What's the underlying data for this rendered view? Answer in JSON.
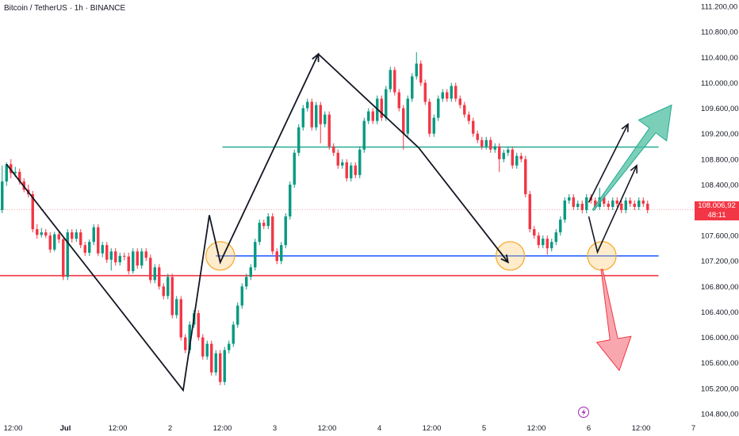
{
  "header": {
    "title": "Bitcoin / TetherUS · 1h · BINANCE"
  },
  "price_label": {
    "price": "108.006,92",
    "countdown": "48:11",
    "color": "#f23645"
  },
  "icons": {
    "bottom_marker": "lightning-icon"
  },
  "colors": {
    "up": "#089981",
    "down": "#f23645",
    "resistance": "#22ab94",
    "support": "#f23645",
    "retest": "#2962ff",
    "zone": "#fbc96c",
    "bull_arrow": "#22ab94",
    "bear_arrow": "#f23645"
  },
  "chart_data": {
    "type": "candlestick",
    "title": "Bitcoin / TetherUS · 1h · BINANCE",
    "y_tick_labels": [
      "111.200,00",
      "110.800,00",
      "110.400,00",
      "110.000,00",
      "109.600,00",
      "109.200,00",
      "108.800,00",
      "108.400,00",
      "108.000,00",
      "107.600,00",
      "107.200,00",
      "106.800,00",
      "106.400,00",
      "106.000,00",
      "105.600,00",
      "105.200,00",
      "104.800,00"
    ],
    "y_ticks": [
      111200,
      110800,
      110400,
      110000,
      109600,
      109200,
      108800,
      108400,
      108000,
      107600,
      107200,
      106800,
      106400,
      106000,
      105600,
      105200,
      104800
    ],
    "ylim": [
      104700,
      111300
    ],
    "x_tick_labels": [
      "12:00",
      "Jul",
      "12:00",
      "2",
      "12:00",
      "3",
      "12:00",
      "4",
      "12:00",
      "5",
      "12:00",
      "6",
      "12:00",
      "7"
    ],
    "x_ticks_hours": [
      -12,
      0,
      12,
      24,
      36,
      48,
      60,
      72,
      84,
      96,
      108,
      120,
      132,
      144
    ],
    "xlim_hours": [
      -15,
      145
    ],
    "current_price": 108006.92,
    "horizontal_levels": [
      {
        "name": "resistance",
        "price": 108990,
        "x_start": 36,
        "x_end": 136
      },
      {
        "name": "support-retest",
        "price": 107280,
        "x_start": 34.5,
        "x_end": 136
      },
      {
        "name": "breakdown-level",
        "price": 106970,
        "x_start": -15,
        "x_end": 136
      }
    ],
    "zones": [
      {
        "x": 35.5,
        "price": 107280
      },
      {
        "x": 102,
        "price": 107280
      },
      {
        "x": 123,
        "price": 107280
      }
    ],
    "zigzag": [
      [
        -13.5,
        108720
      ],
      [
        27,
        105170
      ],
      [
        33,
        107920
      ],
      [
        35.5,
        107180
      ],
      [
        58,
        110450
      ],
      [
        81,
        108980
      ],
      [
        101.5,
        107180
      ]
    ],
    "projection_paths": [
      [
        [
          120,
          107900
        ],
        [
          122,
          107340
        ],
        [
          131,
          108700
        ]
      ],
      [
        [
          120,
          108120
        ],
        [
          129,
          109350
        ]
      ]
    ],
    "bull_arrow": {
      "from": [
        121,
        108000
      ],
      "to": [
        139,
        109650
      ]
    },
    "bear_arrow": {
      "from": [
        123,
        107070
      ],
      "to": [
        127,
        105480
      ]
    },
    "candles": [
      [
        108000,
        108450,
        107950,
        108700
      ],
      [
        108450,
        108720,
        108380,
        108750
      ],
      [
        108720,
        108580,
        108500,
        108800
      ],
      [
        108580,
        108600,
        108520,
        108680
      ],
      [
        108600,
        108450,
        108400,
        108650
      ],
      [
        108450,
        108320,
        108280,
        108500
      ],
      [
        108320,
        108250,
        108200,
        108400
      ],
      [
        108250,
        107700,
        107650,
        108300
      ],
      [
        107700,
        107610,
        107550,
        107780
      ],
      [
        107610,
        107650,
        107570,
        107720
      ],
      [
        107650,
        107600,
        107560,
        107700
      ],
      [
        107600,
        107380,
        107330,
        107650
      ],
      [
        107380,
        107620,
        107350,
        107660
      ],
      [
        107620,
        107540,
        107480,
        107680
      ],
      [
        107540,
        106950,
        106900,
        107560
      ],
      [
        106950,
        107650,
        106900,
        107700
      ],
      [
        107650,
        107550,
        107490,
        107700
      ],
      [
        107550,
        107650,
        107500,
        107700
      ],
      [
        107650,
        107450,
        107400,
        107700
      ],
      [
        107450,
        107330,
        107280,
        107500
      ],
      [
        107330,
        107500,
        107280,
        107540
      ],
      [
        107500,
        107730,
        107450,
        107780
      ],
      [
        107730,
        107320,
        107280,
        107780
      ],
      [
        107320,
        107450,
        107260,
        107500
      ],
      [
        107450,
        107220,
        107170,
        107500
      ],
      [
        107220,
        107350,
        107050,
        107400
      ],
      [
        107350,
        107180,
        107130,
        107400
      ],
      [
        107180,
        107280,
        107130,
        107330
      ],
      [
        107280,
        107270,
        107210,
        107330
      ],
      [
        107270,
        107040,
        106990,
        107330
      ],
      [
        107040,
        107350,
        107000,
        107400
      ],
      [
        107350,
        107130,
        107080,
        107400
      ],
      [
        107130,
        107350,
        107080,
        107400
      ],
      [
        107350,
        107250,
        107200,
        107400
      ],
      [
        107250,
        106900,
        106850,
        107300
      ],
      [
        106900,
        107100,
        106850,
        107150
      ],
      [
        107100,
        106800,
        106750,
        107150
      ],
      [
        106800,
        106650,
        106600,
        106850
      ],
      [
        106650,
        106950,
        106600,
        107000
      ],
      [
        106950,
        106350,
        106300,
        107000
      ],
      [
        106350,
        106600,
        106300,
        106650
      ],
      [
        106600,
        106000,
        105950,
        106650
      ],
      [
        106000,
        105800,
        105750,
        106050
      ],
      [
        105800,
        106200,
        105750,
        106250
      ],
      [
        106200,
        106380,
        106150,
        106430
      ],
      [
        106380,
        106000,
        105950,
        106430
      ],
      [
        106000,
        105700,
        105650,
        106050
      ],
      [
        105700,
        105900,
        105650,
        105950
      ],
      [
        105900,
        105450,
        105400,
        105950
      ],
      [
        105450,
        105750,
        105400,
        105800
      ],
      [
        105750,
        105300,
        105250,
        105800
      ],
      [
        105300,
        105800,
        105250,
        105850
      ],
      [
        105800,
        105900,
        105750,
        105950
      ],
      [
        105900,
        106200,
        105850,
        106250
      ],
      [
        106200,
        106500,
        106150,
        106550
      ],
      [
        106500,
        106800,
        106450,
        106850
      ],
      [
        106800,
        106950,
        106750,
        107000
      ],
      [
        106950,
        107100,
        106900,
        107150
      ],
      [
        107100,
        107500,
        107050,
        107550
      ],
      [
        107500,
        107800,
        107450,
        107850
      ],
      [
        107800,
        107750,
        107700,
        107850
      ],
      [
        107750,
        107900,
        107700,
        107950
      ],
      [
        107900,
        107350,
        107300,
        107950
      ],
      [
        107350,
        107200,
        107150,
        107400
      ],
      [
        107200,
        107450,
        107150,
        107500
      ],
      [
        107450,
        107900,
        107400,
        107950
      ],
      [
        107900,
        108400,
        107850,
        108450
      ],
      [
        108400,
        108900,
        108350,
        108950
      ],
      [
        108900,
        109300,
        108850,
        109350
      ],
      [
        109300,
        109600,
        109250,
        109650
      ],
      [
        109600,
        109700,
        109550,
        109750
      ],
      [
        109700,
        109300,
        109250,
        109750
      ],
      [
        109300,
        109650,
        109250,
        109700
      ],
      [
        109650,
        109350,
        109050,
        109700
      ],
      [
        109350,
        109500,
        109300,
        109550
      ],
      [
        109500,
        109000,
        108950,
        109550
      ],
      [
        109000,
        108900,
        108850,
        109050
      ],
      [
        108900,
        108700,
        108650,
        108950
      ],
      [
        108700,
        108750,
        108650,
        108800
      ],
      [
        108750,
        108500,
        108450,
        108800
      ],
      [
        108500,
        108700,
        108450,
        108750
      ],
      [
        108700,
        108550,
        108500,
        108750
      ],
      [
        108550,
        108950,
        108500,
        109000
      ],
      [
        108950,
        109400,
        108900,
        109450
      ],
      [
        109400,
        109550,
        109350,
        109600
      ],
      [
        109550,
        109400,
        109350,
        109600
      ],
      [
        109400,
        109750,
        109350,
        109800
      ],
      [
        109750,
        109450,
        109400,
        109800
      ],
      [
        109450,
        109900,
        109400,
        109950
      ],
      [
        109900,
        110200,
        109850,
        110250
      ],
      [
        110200,
        109850,
        109800,
        110250
      ],
      [
        109850,
        109600,
        109550,
        109900
      ],
      [
        109600,
        109200,
        108950,
        109650
      ],
      [
        109200,
        109750,
        109150,
        109800
      ],
      [
        109750,
        110100,
        109700,
        110150
      ],
      [
        110100,
        110300,
        110050,
        110480
      ],
      [
        110300,
        110000,
        109950,
        110350
      ],
      [
        110000,
        109700,
        109650,
        110050
      ],
      [
        109700,
        109200,
        109150,
        109750
      ],
      [
        109200,
        109450,
        109150,
        109500
      ],
      [
        109450,
        109750,
        109400,
        109800
      ],
      [
        109750,
        109850,
        109700,
        109900
      ],
      [
        109850,
        109750,
        109700,
        109900
      ],
      [
        109750,
        109950,
        109700,
        110000
      ],
      [
        109950,
        109750,
        109700,
        110000
      ],
      [
        109750,
        109650,
        109600,
        109800
      ],
      [
        109650,
        109500,
        109450,
        109700
      ],
      [
        109500,
        109400,
        109350,
        109550
      ],
      [
        109400,
        109200,
        109150,
        109450
      ],
      [
        109200,
        109100,
        109050,
        109250
      ],
      [
        109100,
        109000,
        108950,
        109150
      ],
      [
        109000,
        109100,
        108950,
        109150
      ],
      [
        109100,
        108950,
        108900,
        109150
      ],
      [
        108950,
        109000,
        108900,
        109050
      ],
      [
        109000,
        108800,
        108600,
        109050
      ],
      [
        108800,
        108900,
        108750,
        108950
      ],
      [
        108900,
        108950,
        108850,
        109000
      ],
      [
        108950,
        108700,
        108650,
        109000
      ],
      [
        108700,
        108850,
        108650,
        108900
      ],
      [
        108850,
        108800,
        108750,
        108900
      ],
      [
        108800,
        108250,
        108200,
        108850
      ],
      [
        108250,
        107700,
        107650,
        108300
      ],
      [
        107700,
        107600,
        107550,
        107750
      ],
      [
        107600,
        107450,
        107400,
        107650
      ],
      [
        107450,
        107550,
        107400,
        107600
      ],
      [
        107550,
        107400,
        107300,
        107600
      ],
      [
        107400,
        107500,
        107350,
        107550
      ],
      [
        107500,
        107650,
        107450,
        107700
      ],
      [
        107650,
        107850,
        107600,
        107900
      ],
      [
        107850,
        108150,
        107800,
        108200
      ],
      [
        108150,
        108200,
        108100,
        108250
      ],
      [
        108200,
        108050,
        108000,
        108250
      ],
      [
        108050,
        108100,
        108000,
        108150
      ],
      [
        108100,
        108000,
        107950,
        108150
      ],
      [
        108000,
        108200,
        107950,
        108250
      ],
      [
        108200,
        108150,
        108100,
        108250
      ],
      [
        108150,
        108050,
        108000,
        108200
      ],
      [
        108050,
        108200,
        108000,
        108350
      ],
      [
        108200,
        108100,
        108050,
        108250
      ],
      [
        108100,
        108050,
        108000,
        108150
      ],
      [
        108050,
        108150,
        108000,
        108200
      ],
      [
        108150,
        108100,
        108050,
        108200
      ],
      [
        108100,
        108000,
        107950,
        108150
      ],
      [
        108000,
        108150,
        107950,
        108200
      ],
      [
        108150,
        108100,
        108050,
        108200
      ],
      [
        108100,
        108050,
        108000,
        108150
      ],
      [
        108050,
        108150,
        108000,
        108200
      ],
      [
        108150,
        108100,
        108050,
        108200
      ],
      [
        108100,
        108000,
        107950,
        108150
      ]
    ]
  }
}
